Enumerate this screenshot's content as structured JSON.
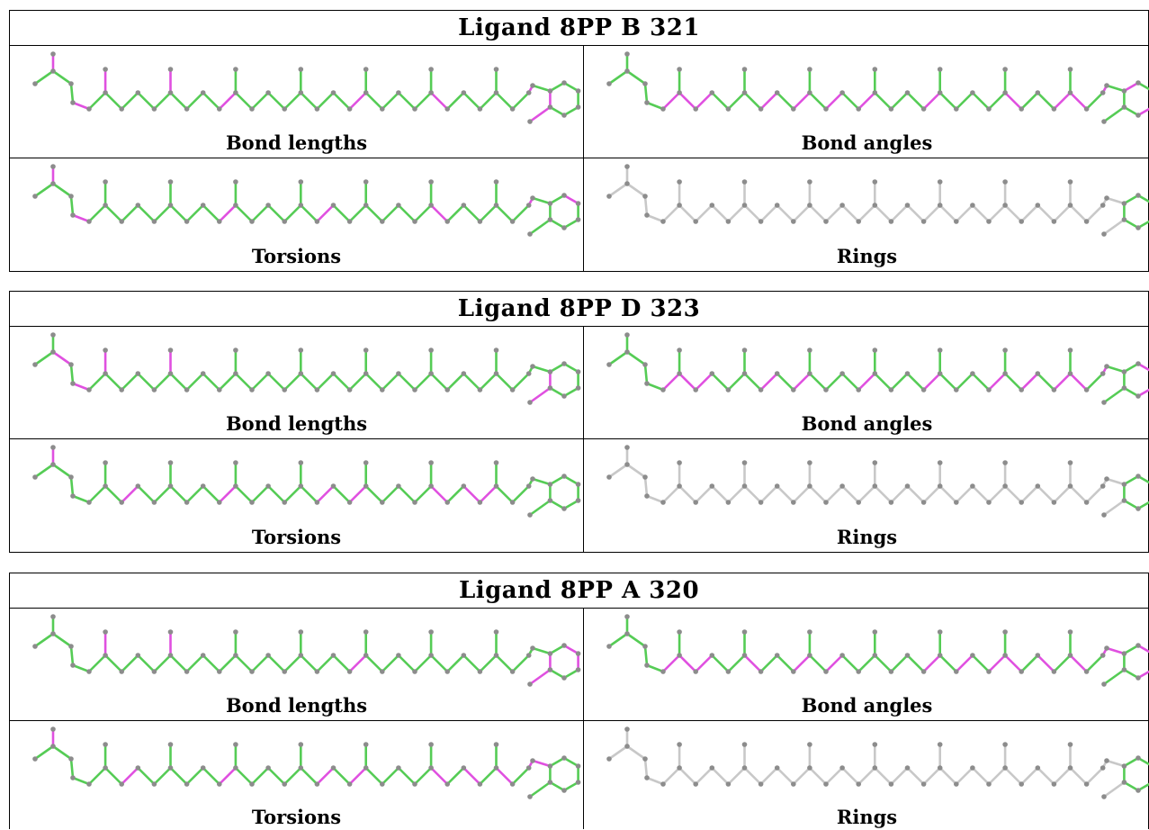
{
  "colors": {
    "match": "#55cc55",
    "outlier": "#e050e0",
    "neutral": "#c8c8c8",
    "atom": "#8c8c8c"
  },
  "panels": [
    {
      "title": "Ligand 8PP B 321",
      "views": [
        {
          "caption": "Bond lengths",
          "magenta": [
            "1-2",
            "4-5",
            "13-14",
            "21-22",
            "26-27",
            "32-33",
            "39-40",
            "40-41",
            "41-42",
            "42-43",
            "41-44"
          ]
        },
        {
          "caption": "Bond angles",
          "magenta": [
            "5-6",
            "6-7",
            "7-8",
            "6-9",
            "11-12",
            "13-14",
            "15-16",
            "17-18",
            "21-22",
            "26-27",
            "29-30",
            "30-31",
            "32-33",
            "34-35",
            "36-37",
            "37-38",
            "37-39"
          ]
        },
        {
          "caption": "Torsions",
          "magenta": [
            "1-2",
            "4-5",
            "13-14",
            "19-20",
            "26-27",
            "32-33",
            "35-36"
          ]
        },
        {
          "caption": "Rings",
          "green_only_ring": true
        }
      ]
    },
    {
      "title": "Ligand 8PP D 323",
      "views": [
        {
          "caption": "Bond lengths",
          "magenta": [
            "2-3",
            "4-5",
            "39-40",
            "40-41",
            "41-42",
            "42-43",
            "41-44"
          ]
        },
        {
          "caption": "Bond angles",
          "magenta": [
            "5-6",
            "6-7",
            "7-8",
            "6-9",
            "11-12",
            "13-14",
            "17-18",
            "21-22",
            "25-26",
            "27-28",
            "29-30",
            "30-31",
            "32-33",
            "35-36",
            "36-37",
            "37-38",
            "37-39"
          ]
        },
        {
          "caption": "Torsions",
          "magenta": [
            "1-2",
            "7-8",
            "13-14",
            "19-20",
            "21-22",
            "26-27",
            "28-29",
            "29-30"
          ]
        },
        {
          "caption": "Rings",
          "green_only_ring": true
        }
      ]
    },
    {
      "title": "Ligand 8PP A 320",
      "views": [
        {
          "caption": "Bond lengths",
          "magenta": [
            "21-22",
            "35-36",
            "36-37",
            "39-40",
            "40-41",
            "41-42",
            "42-43"
          ]
        },
        {
          "caption": "Bond angles",
          "magenta": [
            "5-6",
            "6-7",
            "6-9",
            "7-8",
            "10-11",
            "13-14",
            "15-16",
            "21-22",
            "23-24",
            "25-26",
            "26-27",
            "28-29",
            "30-31",
            "32-33",
            "33-34",
            "35-36",
            "36-37",
            "37-38"
          ]
        },
        {
          "caption": "Torsions",
          "magenta": [
            "1-2",
            "7-8",
            "13-14",
            "19-20",
            "21-22",
            "26-27",
            "28-29",
            "30-31",
            "32-33",
            "33-34"
          ]
        },
        {
          "caption": "Rings",
          "green_only_ring": true
        }
      ]
    }
  ]
}
